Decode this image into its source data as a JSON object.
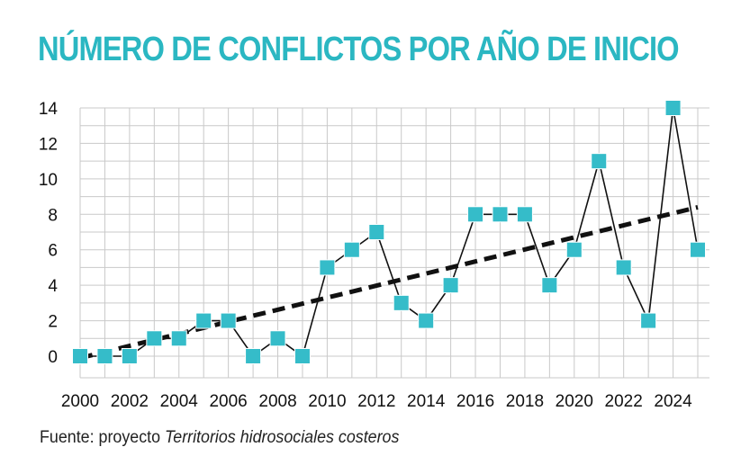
{
  "title": "NÚMERO DE CONFLICTOS POR AÑO DE INICIO",
  "source": {
    "prefix": "Fuente: proyecto ",
    "italic": "Territorios hidrosociales costeros"
  },
  "colors": {
    "accent": "#2bb7c2",
    "marker": "#35bcc9",
    "line": "#111111",
    "grid": "#c9c9c9"
  },
  "chart_data": {
    "type": "line",
    "x": [
      2000,
      2001,
      2002,
      2003,
      2004,
      2005,
      2006,
      2007,
      2008,
      2009,
      2010,
      2011,
      2012,
      2013,
      2014,
      2015,
      2016,
      2017,
      2018,
      2019,
      2020,
      2021,
      2022,
      2023,
      2024,
      2025
    ],
    "series": [
      {
        "values": [
          0,
          0,
          0,
          1,
          1,
          2,
          2,
          0,
          1,
          0,
          5,
          6,
          7,
          3,
          2,
          4,
          8,
          8,
          8,
          4,
          6,
          11,
          5,
          2,
          14,
          6
        ]
      }
    ],
    "trendline": {
      "style": "dashed",
      "from": [
        2000,
        -0.1
      ],
      "to": [
        2025,
        8.4
      ]
    },
    "xticks": [
      "2000",
      "2002",
      "2004",
      "2006",
      "2008",
      "2010",
      "2012",
      "2014",
      "2016",
      "2018",
      "2020",
      "2022",
      "2024"
    ],
    "yticks": [
      "0",
      "2",
      "4",
      "6",
      "8",
      "10",
      "12",
      "14"
    ],
    "xlim": [
      2000,
      2025
    ],
    "ylim": [
      0,
      14
    ],
    "grid": true,
    "legend": "none"
  }
}
